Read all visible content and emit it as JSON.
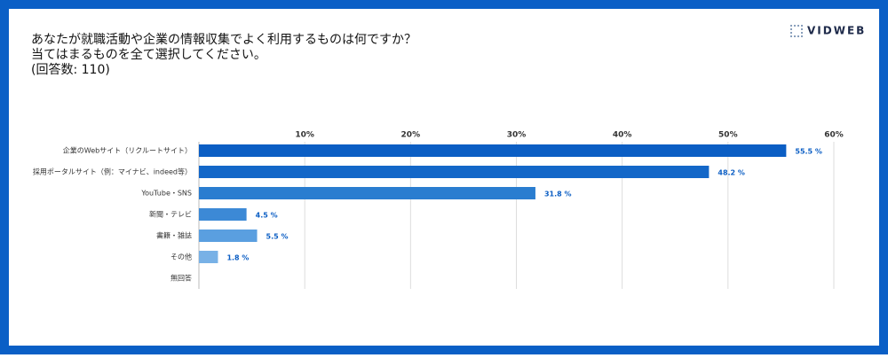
{
  "brand": "VIDWEB",
  "chart_data": {
    "type": "bar",
    "orientation": "horizontal",
    "title": [
      "あなたが就職活動や企業の情報収集でよく利用するものは何ですか？",
      "当てはまるものを全て選択してください。",
      "(回答数: 110)"
    ],
    "categories": [
      "企業のWebサイト（リクルートサイト）",
      "採用ポータルサイト（例：マイナビ、indeed等）",
      "YouTube・SNS",
      "新聞・テレビ",
      "書籍・雑誌",
      "その他",
      "無回答"
    ],
    "values": [
      55.5,
      48.2,
      31.8,
      4.5,
      5.5,
      1.8,
      null
    ],
    "value_labels": [
      "55.5 %",
      "48.2 %",
      "31.8 %",
      "4.5 %",
      "5.5 %",
      "1.8 %",
      null
    ],
    "colors": [
      "#0b5ec4",
      "#1367c8",
      "#2a7dd0",
      "#3c89d6",
      "#5a9fe0",
      "#78b1e6",
      "#9cc4ec"
    ],
    "xlim": [
      0,
      60
    ],
    "xticks": [
      {
        "value": 10,
        "label": "10%"
      },
      {
        "value": 20,
        "label": "20%"
      },
      {
        "value": 30,
        "label": "30%"
      },
      {
        "value": 40,
        "label": "40%"
      },
      {
        "value": 50,
        "label": "50%"
      },
      {
        "value": 60,
        "label": "60%"
      }
    ],
    "grid": true
  }
}
